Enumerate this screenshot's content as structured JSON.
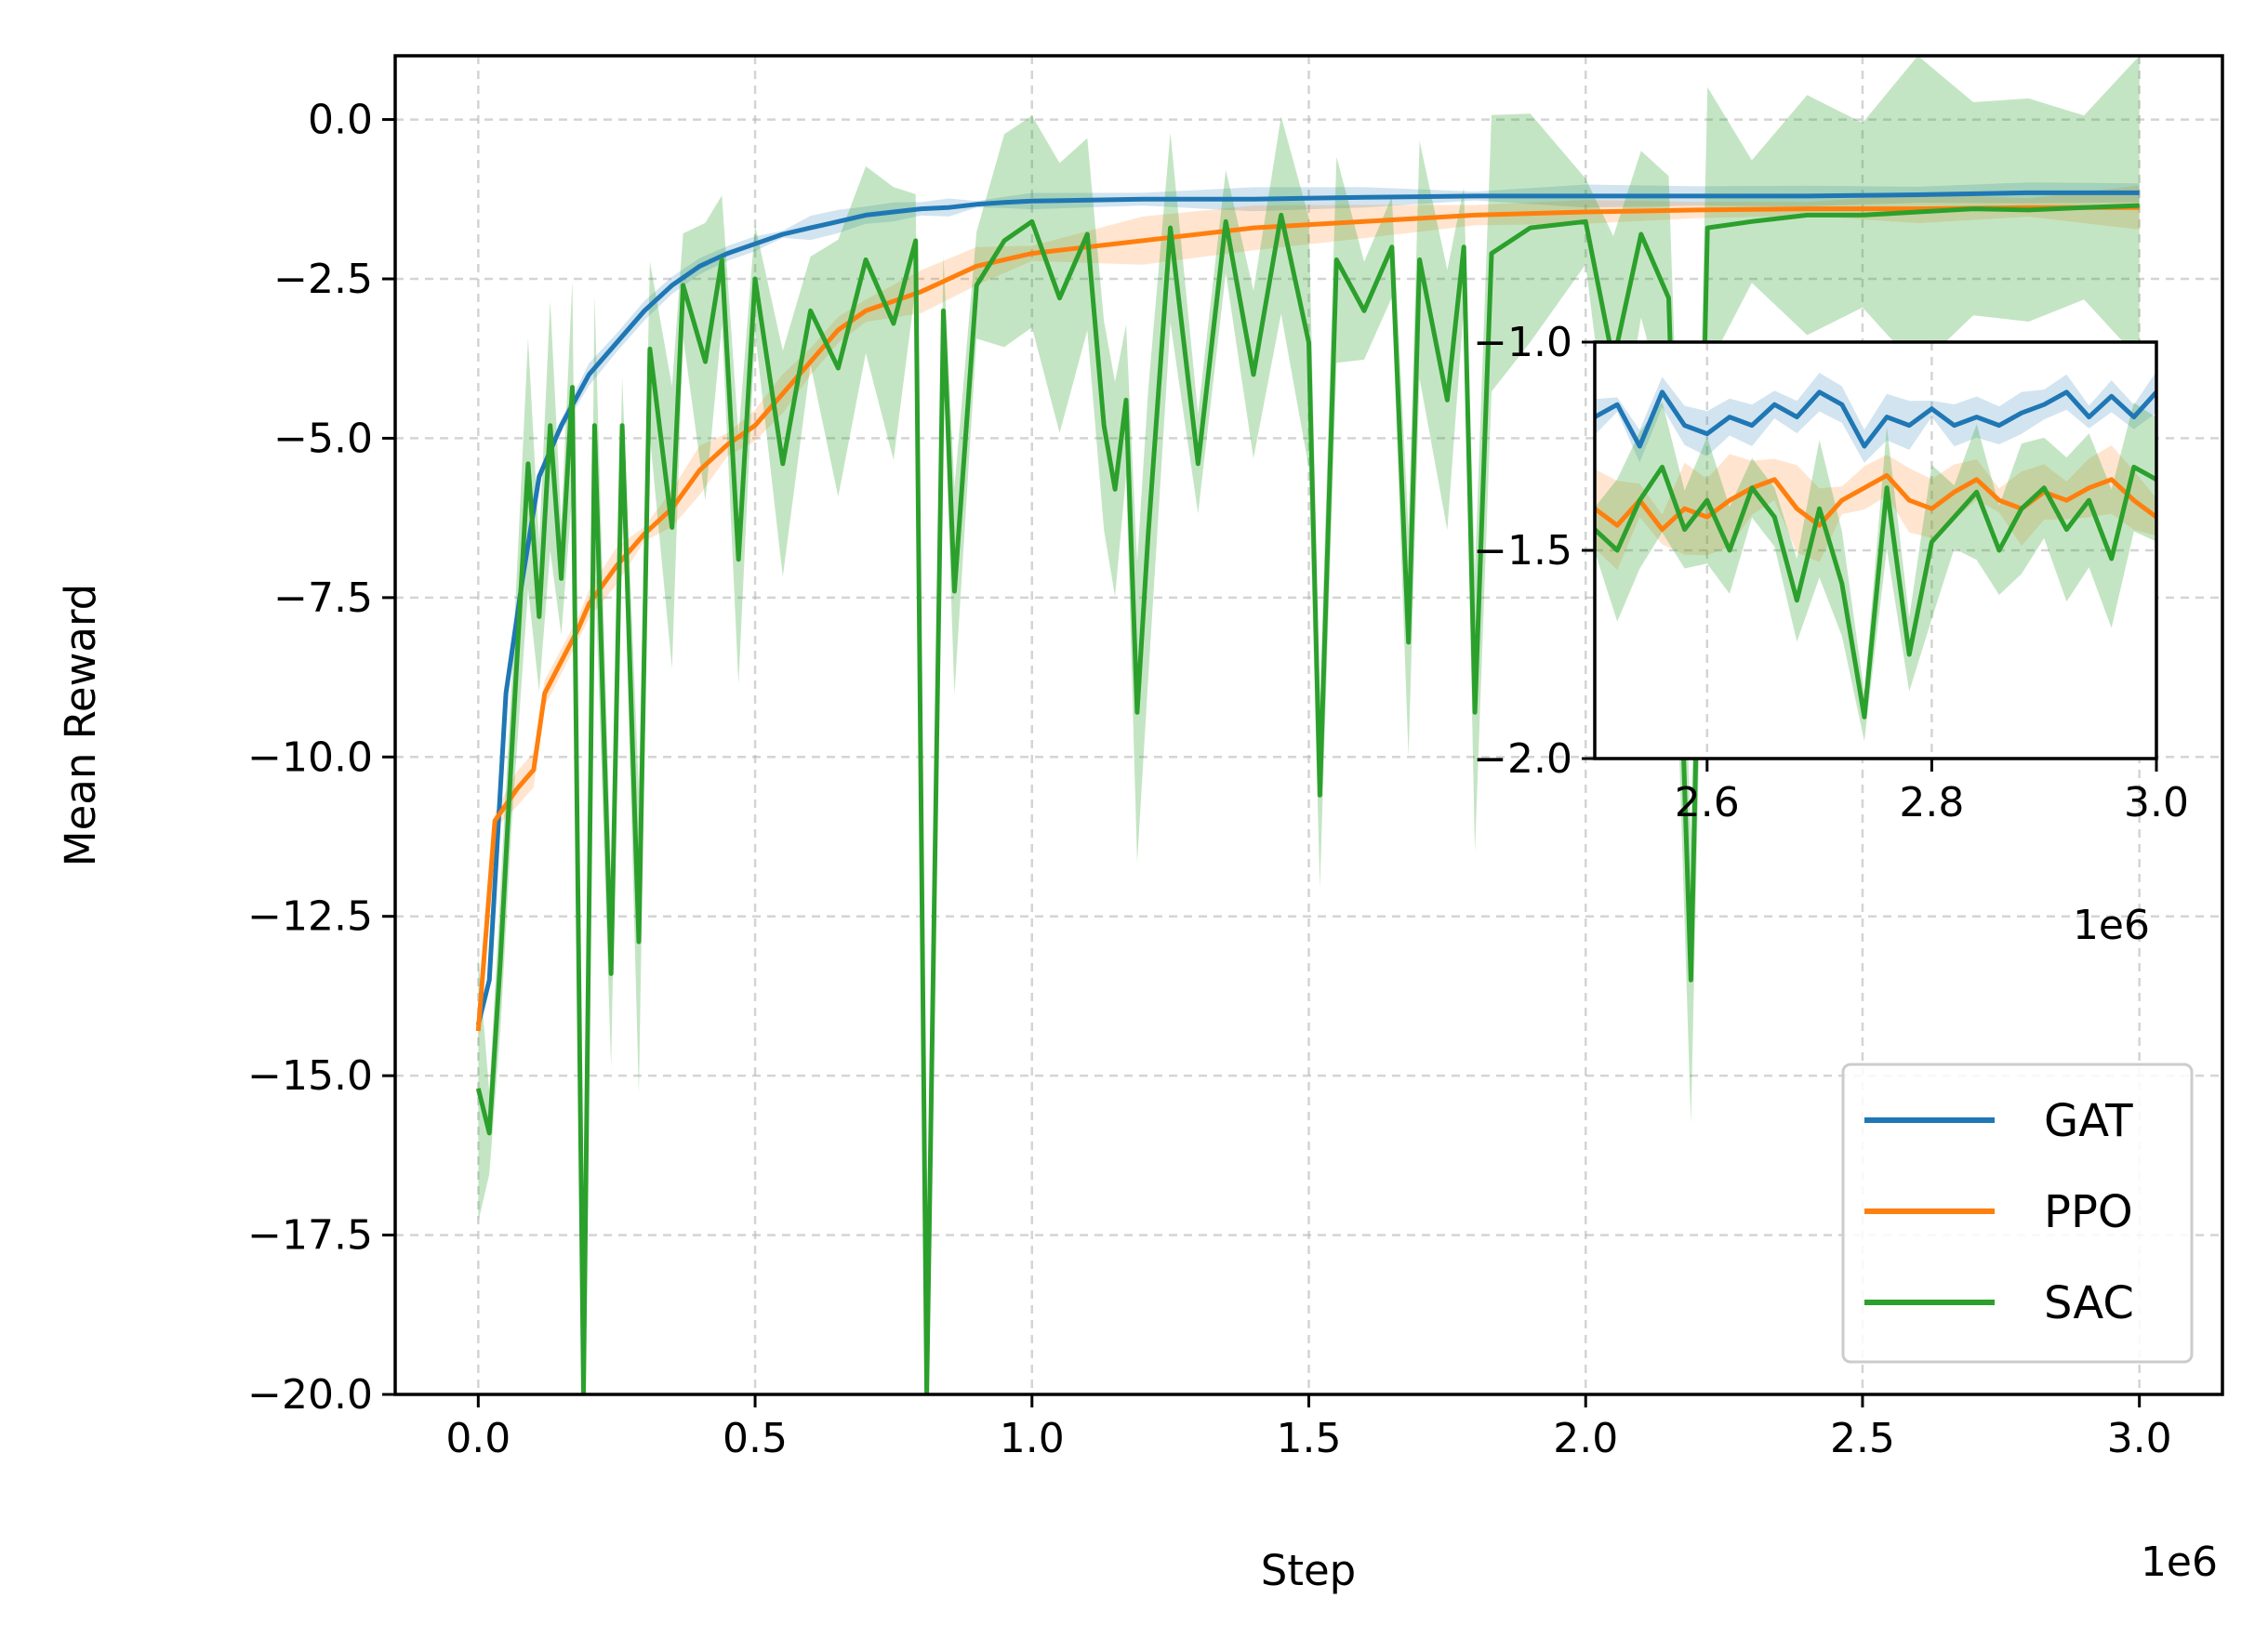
{
  "chart_data": {
    "type": "line",
    "xlabel": "Step",
    "ylabel": "Mean Reward",
    "x_offset_label": "1e6",
    "xlim": [
      -150000,
      3150000
    ],
    "ylim": [
      -20,
      1
    ],
    "xticks": [
      0,
      500000,
      1000000,
      1500000,
      2000000,
      2500000,
      3000000
    ],
    "xtick_labels": [
      "0.0",
      "0.5",
      "1.0",
      "1.5",
      "2.0",
      "2.5",
      "3.0"
    ],
    "yticks": [
      0,
      -2.5,
      -5,
      -7.5,
      -10,
      -12.5,
      -15,
      -17.5,
      -20
    ],
    "ytick_labels": [
      "0.0",
      "−2.5",
      "−5.0",
      "−7.5",
      "−10.0",
      "−12.5",
      "−15.0",
      "−17.5",
      "−20.0"
    ],
    "grid": true,
    "grid_style": "dashed",
    "legend_position": "lower-right",
    "series": [
      {
        "name": "GAT",
        "color": "#1f77b4",
        "shading": "std band",
        "points": [
          [
            0,
            -14.2
          ],
          [
            20000,
            -13.5
          ],
          [
            50000,
            -9.0
          ],
          [
            80000,
            -7.2
          ],
          [
            110000,
            -5.6
          ],
          [
            150000,
            -4.8
          ],
          [
            200000,
            -4.0
          ],
          [
            250000,
            -3.5
          ],
          [
            300000,
            -3.0
          ],
          [
            350000,
            -2.6
          ],
          [
            400000,
            -2.3
          ],
          [
            450000,
            -2.1
          ],
          [
            500000,
            -1.95
          ],
          [
            550000,
            -1.8
          ],
          [
            600000,
            -1.7
          ],
          [
            650000,
            -1.6
          ],
          [
            700000,
            -1.5
          ],
          [
            750000,
            -1.45
          ],
          [
            800000,
            -1.4
          ],
          [
            850000,
            -1.38
          ],
          [
            900000,
            -1.33
          ],
          [
            950000,
            -1.3
          ],
          [
            1000000,
            -1.28
          ],
          [
            1200000,
            -1.25
          ],
          [
            1400000,
            -1.25
          ],
          [
            1600000,
            -1.22
          ],
          [
            1800000,
            -1.2
          ],
          [
            2000000,
            -1.2
          ],
          [
            2200000,
            -1.2
          ],
          [
            2400000,
            -1.2
          ],
          [
            2600000,
            -1.18
          ],
          [
            2800000,
            -1.15
          ],
          [
            3000000,
            -1.15
          ]
        ]
      },
      {
        "name": "PPO",
        "color": "#ff7f0e",
        "shading": "std band",
        "points": [
          [
            0,
            -14.3
          ],
          [
            30000,
            -11.0
          ],
          [
            70000,
            -10.5
          ],
          [
            100000,
            -10.2
          ],
          [
            120000,
            -9.0
          ],
          [
            150000,
            -8.5
          ],
          [
            180000,
            -8.0
          ],
          [
            200000,
            -7.6
          ],
          [
            250000,
            -7.0
          ],
          [
            300000,
            -6.5
          ],
          [
            350000,
            -6.1
          ],
          [
            400000,
            -5.5
          ],
          [
            450000,
            -5.1
          ],
          [
            500000,
            -4.8
          ],
          [
            550000,
            -4.3
          ],
          [
            600000,
            -3.8
          ],
          [
            650000,
            -3.3
          ],
          [
            700000,
            -3.0
          ],
          [
            800000,
            -2.7
          ],
          [
            900000,
            -2.3
          ],
          [
            1000000,
            -2.1
          ],
          [
            1200000,
            -1.9
          ],
          [
            1400000,
            -1.7
          ],
          [
            1600000,
            -1.6
          ],
          [
            1800000,
            -1.5
          ],
          [
            2000000,
            -1.45
          ],
          [
            2200000,
            -1.42
          ],
          [
            2400000,
            -1.4
          ],
          [
            2600000,
            -1.4
          ],
          [
            2800000,
            -1.38
          ],
          [
            3000000,
            -1.38
          ]
        ]
      },
      {
        "name": "SAC",
        "color": "#2ca02c",
        "shading": "std band",
        "points": [
          [
            0,
            -15.2
          ],
          [
            20000,
            -15.9
          ],
          [
            40000,
            -13.2
          ],
          [
            60000,
            -10.0
          ],
          [
            90000,
            -5.4
          ],
          [
            110000,
            -7.8
          ],
          [
            130000,
            -4.8
          ],
          [
            150000,
            -7.2
          ],
          [
            170000,
            -4.2
          ],
          [
            190000,
            -20.0
          ],
          [
            210000,
            -4.8
          ],
          [
            240000,
            -13.4
          ],
          [
            260000,
            -4.8
          ],
          [
            290000,
            -12.9
          ],
          [
            310000,
            -3.6
          ],
          [
            350000,
            -6.4
          ],
          [
            370000,
            -2.6
          ],
          [
            410000,
            -3.8
          ],
          [
            440000,
            -2.2
          ],
          [
            470000,
            -6.9
          ],
          [
            500000,
            -2.5
          ],
          [
            550000,
            -5.4
          ],
          [
            600000,
            -3.0
          ],
          [
            650000,
            -3.9
          ],
          [
            700000,
            -2.2
          ],
          [
            750000,
            -3.2
          ],
          [
            790000,
            -1.9
          ],
          [
            810000,
            -20.0
          ],
          [
            840000,
            -3.0
          ],
          [
            860000,
            -7.4
          ],
          [
            900000,
            -2.6
          ],
          [
            950000,
            -1.9
          ],
          [
            1000000,
            -1.6
          ],
          [
            1050000,
            -2.8
          ],
          [
            1100000,
            -1.8
          ],
          [
            1130000,
            -4.8
          ],
          [
            1150000,
            -5.8
          ],
          [
            1170000,
            -4.4
          ],
          [
            1190000,
            -9.3
          ],
          [
            1210000,
            -6.5
          ],
          [
            1250000,
            -1.7
          ],
          [
            1300000,
            -5.4
          ],
          [
            1350000,
            -1.6
          ],
          [
            1400000,
            -4.0
          ],
          [
            1450000,
            -1.5
          ],
          [
            1500000,
            -3.5
          ],
          [
            1520000,
            -10.6
          ],
          [
            1550000,
            -2.2
          ],
          [
            1600000,
            -3.0
          ],
          [
            1650000,
            -2.0
          ],
          [
            1680000,
            -8.2
          ],
          [
            1700000,
            -2.2
          ],
          [
            1750000,
            -4.4
          ],
          [
            1780000,
            -2.0
          ],
          [
            1800000,
            -9.3
          ],
          [
            1830000,
            -2.1
          ],
          [
            1900000,
            -1.7
          ],
          [
            2000000,
            -1.6
          ],
          [
            2050000,
            -3.8
          ],
          [
            2100000,
            -1.8
          ],
          [
            2150000,
            -2.8
          ],
          [
            2190000,
            -13.5
          ],
          [
            2220000,
            -1.7
          ],
          [
            2300000,
            -1.6
          ],
          [
            2400000,
            -1.5
          ],
          [
            2500000,
            -1.5
          ],
          [
            2600000,
            -1.45
          ],
          [
            2700000,
            -1.4
          ],
          [
            2800000,
            -1.42
          ],
          [
            2900000,
            -1.38
          ],
          [
            3000000,
            -1.35
          ]
        ]
      }
    ],
    "inset": {
      "type": "line",
      "x_offset_label": "1e6",
      "xlim": [
        2500000,
        3000000
      ],
      "ylim": [
        -2.0,
        -1.0
      ],
      "xticks": [
        2600000,
        2800000,
        3000000
      ],
      "xtick_labels": [
        "2.6",
        "2.8",
        "3.0"
      ],
      "yticks": [
        -1.0,
        -1.5,
        -2.0
      ],
      "ytick_labels": [
        "−1.0",
        "−1.5",
        "−2.0"
      ],
      "grid": true,
      "series": [
        {
          "name": "GAT",
          "color": "#1f77b4",
          "points": [
            [
              2500000,
              -1.18
            ],
            [
              2520000,
              -1.15
            ],
            [
              2540000,
              -1.25
            ],
            [
              2560000,
              -1.12
            ],
            [
              2580000,
              -1.2
            ],
            [
              2600000,
              -1.22
            ],
            [
              2620000,
              -1.18
            ],
            [
              2640000,
              -1.2
            ],
            [
              2660000,
              -1.15
            ],
            [
              2680000,
              -1.18
            ],
            [
              2700000,
              -1.12
            ],
            [
              2720000,
              -1.15
            ],
            [
              2740000,
              -1.25
            ],
            [
              2760000,
              -1.18
            ],
            [
              2780000,
              -1.2
            ],
            [
              2800000,
              -1.16
            ],
            [
              2820000,
              -1.2
            ],
            [
              2840000,
              -1.18
            ],
            [
              2860000,
              -1.2
            ],
            [
              2880000,
              -1.17
            ],
            [
              2900000,
              -1.15
            ],
            [
              2920000,
              -1.12
            ],
            [
              2940000,
              -1.18
            ],
            [
              2960000,
              -1.13
            ],
            [
              2980000,
              -1.18
            ],
            [
              3000000,
              -1.12
            ]
          ]
        },
        {
          "name": "PPO",
          "color": "#ff7f0e",
          "points": [
            [
              2500000,
              -1.4
            ],
            [
              2520000,
              -1.44
            ],
            [
              2540000,
              -1.38
            ],
            [
              2560000,
              -1.45
            ],
            [
              2580000,
              -1.4
            ],
            [
              2600000,
              -1.42
            ],
            [
              2620000,
              -1.38
            ],
            [
              2640000,
              -1.35
            ],
            [
              2660000,
              -1.33
            ],
            [
              2680000,
              -1.4
            ],
            [
              2700000,
              -1.44
            ],
            [
              2720000,
              -1.38
            ],
            [
              2740000,
              -1.35
            ],
            [
              2760000,
              -1.32
            ],
            [
              2780000,
              -1.38
            ],
            [
              2800000,
              -1.4
            ],
            [
              2820000,
              -1.36
            ],
            [
              2840000,
              -1.33
            ],
            [
              2860000,
              -1.38
            ],
            [
              2880000,
              -1.4
            ],
            [
              2900000,
              -1.36
            ],
            [
              2920000,
              -1.38
            ],
            [
              2940000,
              -1.35
            ],
            [
              2960000,
              -1.33
            ],
            [
              2980000,
              -1.38
            ],
            [
              3000000,
              -1.42
            ]
          ]
        },
        {
          "name": "SAC",
          "color": "#2ca02c",
          "points": [
            [
              2500000,
              -1.45
            ],
            [
              2520000,
              -1.5
            ],
            [
              2540000,
              -1.38
            ],
            [
              2560000,
              -1.3
            ],
            [
              2580000,
              -1.45
            ],
            [
              2600000,
              -1.38
            ],
            [
              2620000,
              -1.5
            ],
            [
              2640000,
              -1.35
            ],
            [
              2660000,
              -1.42
            ],
            [
              2680000,
              -1.62
            ],
            [
              2700000,
              -1.4
            ],
            [
              2720000,
              -1.58
            ],
            [
              2740000,
              -1.9
            ],
            [
              2760000,
              -1.35
            ],
            [
              2780000,
              -1.75
            ],
            [
              2800000,
              -1.48
            ],
            [
              2820000,
              -1.42
            ],
            [
              2840000,
              -1.36
            ],
            [
              2860000,
              -1.5
            ],
            [
              2880000,
              -1.4
            ],
            [
              2900000,
              -1.35
            ],
            [
              2920000,
              -1.45
            ],
            [
              2940000,
              -1.38
            ],
            [
              2960000,
              -1.52
            ],
            [
              2980000,
              -1.3
            ],
            [
              3000000,
              -1.33
            ]
          ]
        }
      ]
    }
  }
}
